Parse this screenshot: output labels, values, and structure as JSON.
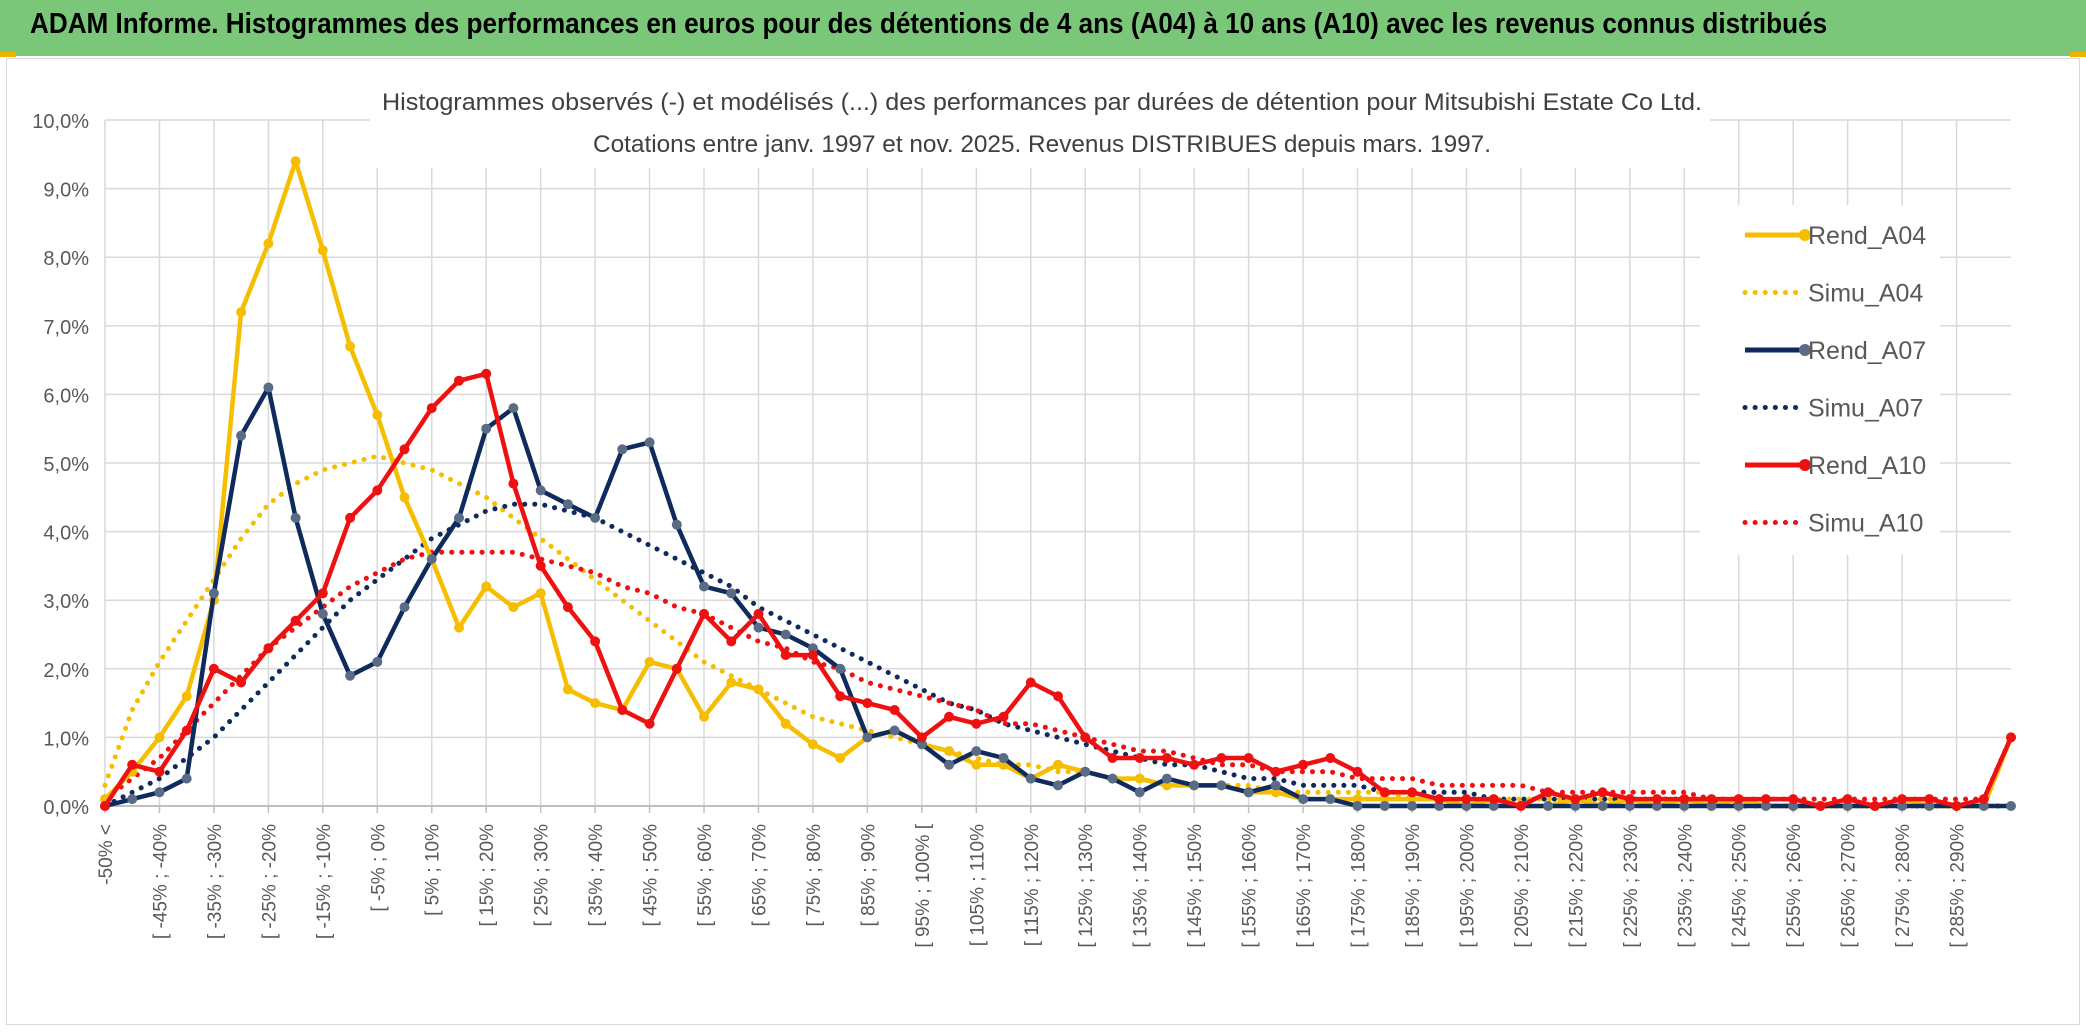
{
  "banner": {
    "title": "ADAM Informe. Histogrammes des performances en euros pour des détentions de 4 ans (A04) à 10 ans (A10) avec les revenus connus distribués"
  },
  "colors": {
    "banner_bg": "#7ac77a",
    "accent": "#f0b400",
    "a04": "#f5be00",
    "a07": "#0f2a5c",
    "a10": "#ee1111"
  },
  "chart_data": {
    "type": "line",
    "title": "Histogrammes observés (-) et modélisés (...) des performances par durées de détention pour Mitsubishi Estate Co Ltd.",
    "subtitle": "Cotations entre janv. 1997 et nov. 2025. Revenus DISTRIBUES depuis mars. 1997.",
    "xlabel": "",
    "ylabel": "",
    "ylim": [
      0,
      10
    ],
    "yticks": [
      "0,0%",
      "1,0%",
      "2,0%",
      "3,0%",
      "4,0%",
      "5,0%",
      "6,0%",
      "7,0%",
      "8,0%",
      "9,0%",
      "10,0%"
    ],
    "grid": true,
    "legend_position": "right",
    "categories": [
      "-50% <",
      "[ -45% ; -40%",
      "[ -35% ; -30%",
      "[ -25% ; -20%",
      "[ -15% ; -10%",
      "[ -5% ; 0%",
      "[ 5% ; 10%",
      "[ 15% ; 20%",
      "[ 25% ; 30%",
      "[ 35% ; 40%",
      "[ 45% ; 50%",
      "[ 55% ; 60%",
      "[ 65% ; 70%",
      "[ 75% ; 80%",
      "[ 85% ; 90%",
      "[ 95% ; 100% [",
      "[ 105% ; 110%",
      "[ 115% ; 120%",
      "[ 125% ; 130%",
      "[ 135% ; 140%",
      "[ 145% ; 150%",
      "[ 155% ; 160%",
      "[ 165% ; 170%",
      "[ 175% ; 180%",
      "[ 185% ; 190%",
      "[ 195% ; 200%",
      "[ 205% ; 210%",
      "[ 215% ; 220%",
      "[ 225% ; 230%",
      "[ 235% ; 240%",
      "[ 245% ; 250%",
      "[ 255% ; 260%",
      "[ 265% ; 270%",
      "[ 275% ; 280%",
      "[ 285% ; 290%"
    ],
    "x": [
      -50,
      -45,
      -40,
      -35,
      -30,
      -25,
      -20,
      -15,
      -10,
      -5,
      0,
      5,
      10,
      15,
      20,
      25,
      30,
      35,
      40,
      45,
      50,
      55,
      60,
      65,
      70,
      75,
      80,
      85,
      90,
      95,
      100,
      105,
      110,
      115,
      120,
      125,
      130,
      135,
      140,
      145,
      150,
      155,
      160,
      165,
      170,
      175,
      180,
      185,
      190,
      195,
      200,
      205,
      210,
      215,
      220,
      225,
      230,
      235,
      240,
      245,
      250,
      255,
      260,
      265,
      270,
      275,
      280,
      285,
      290,
      295,
      300
    ],
    "series": [
      {
        "name": "Rend_A04",
        "style": "solid",
        "values": [
          0.1,
          0.5,
          1.0,
          1.6,
          3.0,
          7.2,
          8.2,
          9.4,
          8.1,
          6.7,
          5.7,
          4.5,
          3.6,
          2.6,
          3.2,
          2.9,
          3.1,
          1.7,
          1.5,
          1.4,
          2.1,
          2.0,
          1.3,
          1.8,
          1.7,
          1.2,
          0.9,
          0.7,
          1.0,
          1.1,
          0.9,
          0.8,
          0.6,
          0.6,
          0.4,
          0.6,
          0.5,
          0.4,
          0.4,
          0.3,
          0.3,
          0.3,
          0.2,
          0.2,
          0.1,
          0.1,
          0.1,
          0.1,
          0.1,
          0.1,
          0.0,
          0.1,
          0.0,
          0.0,
          0.1,
          0.0,
          0.1,
          0.0,
          0.1,
          0.0,
          0.1,
          0.0,
          0.0,
          0.0,
          0.0,
          0.0,
          0.1,
          0.0,
          0.0,
          0.0,
          1.0
        ]
      },
      {
        "name": "Simu_A04",
        "style": "dotted",
        "values": [
          0.3,
          1.4,
          2.1,
          2.7,
          3.3,
          3.9,
          4.4,
          4.7,
          4.9,
          5.0,
          5.1,
          5.0,
          4.9,
          4.7,
          4.5,
          4.2,
          3.9,
          3.6,
          3.3,
          3.0,
          2.7,
          2.4,
          2.1,
          1.9,
          1.7,
          1.5,
          1.3,
          1.2,
          1.1,
          1.0,
          0.9,
          0.8,
          0.7,
          0.6,
          0.6,
          0.5,
          0.5,
          0.4,
          0.4,
          0.3,
          0.3,
          0.3,
          0.3,
          0.2,
          0.2,
          0.2,
          0.2,
          0.2,
          0.1,
          0.1,
          0.1,
          0.1,
          0.1,
          0.1,
          0.1,
          0.1,
          0.1,
          0.1,
          0.1,
          0.1,
          0.1,
          0.0,
          0.0,
          0.0,
          0.0,
          0.0,
          0.0,
          0.0,
          0.0,
          0.0,
          1.0
        ]
      },
      {
        "name": "Rend_A07",
        "style": "solid",
        "values": [
          0.0,
          0.1,
          0.2,
          0.4,
          3.1,
          5.4,
          6.1,
          4.2,
          2.8,
          1.9,
          2.1,
          2.9,
          3.6,
          4.2,
          5.5,
          5.8,
          4.6,
          4.4,
          4.2,
          5.2,
          5.3,
          4.1,
          3.2,
          3.1,
          2.6,
          2.5,
          2.3,
          2.0,
          1.0,
          1.1,
          0.9,
          0.6,
          0.8,
          0.7,
          0.4,
          0.3,
          0.5,
          0.4,
          0.2,
          0.4,
          0.3,
          0.3,
          0.2,
          0.3,
          0.1,
          0.1,
          0.0,
          0.0,
          0.0,
          0.0,
          0.0,
          0.0,
          0.0,
          0.0,
          0.0,
          0.0,
          0.0,
          0.0,
          0.0,
          0.0,
          0.0,
          0.0,
          0.0,
          0.0,
          0.0,
          0.0,
          0.0,
          0.0,
          0.0,
          0.0,
          0.0
        ]
      },
      {
        "name": "Simu_A07",
        "style": "dotted",
        "values": [
          0.0,
          0.2,
          0.4,
          0.7,
          1.0,
          1.4,
          1.8,
          2.2,
          2.6,
          3.0,
          3.3,
          3.6,
          3.9,
          4.1,
          4.3,
          4.4,
          4.4,
          4.3,
          4.2,
          4.0,
          3.8,
          3.6,
          3.4,
          3.2,
          2.9,
          2.7,
          2.5,
          2.3,
          2.1,
          1.9,
          1.7,
          1.5,
          1.4,
          1.2,
          1.1,
          1.0,
          0.9,
          0.8,
          0.7,
          0.6,
          0.6,
          0.5,
          0.4,
          0.4,
          0.3,
          0.3,
          0.3,
          0.2,
          0.2,
          0.2,
          0.2,
          0.1,
          0.1,
          0.1,
          0.1,
          0.1,
          0.1,
          0.1,
          0.1,
          0.1,
          0.0,
          0.0,
          0.0,
          0.0,
          0.0,
          0.0,
          0.0,
          0.0,
          0.0,
          0.0,
          0.0
        ]
      },
      {
        "name": "Rend_A10",
        "style": "solid",
        "values": [
          0.0,
          0.6,
          0.5,
          1.1,
          2.0,
          1.8,
          2.3,
          2.7,
          3.1,
          4.2,
          4.6,
          5.2,
          5.8,
          6.2,
          6.3,
          4.7,
          3.5,
          2.9,
          2.4,
          1.4,
          1.2,
          2.0,
          2.8,
          2.4,
          2.8,
          2.2,
          2.2,
          1.6,
          1.5,
          1.4,
          1.0,
          1.3,
          1.2,
          1.3,
          1.8,
          1.6,
          1.0,
          0.7,
          0.7,
          0.7,
          0.6,
          0.7,
          0.7,
          0.5,
          0.6,
          0.7,
          0.5,
          0.2,
          0.2,
          0.1,
          0.1,
          0.1,
          0.0,
          0.2,
          0.1,
          0.2,
          0.1,
          0.1,
          0.1,
          0.1,
          0.1,
          0.1,
          0.1,
          0.0,
          0.1,
          0.0,
          0.1,
          0.1,
          0.0,
          0.1,
          1.0
        ]
      },
      {
        "name": "Simu_A10",
        "style": "dotted",
        "values": [
          0.1,
          0.4,
          0.7,
          1.1,
          1.5,
          1.9,
          2.3,
          2.6,
          2.9,
          3.2,
          3.4,
          3.6,
          3.7,
          3.7,
          3.7,
          3.7,
          3.6,
          3.5,
          3.4,
          3.2,
          3.1,
          2.9,
          2.8,
          2.6,
          2.4,
          2.3,
          2.1,
          2.0,
          1.8,
          1.7,
          1.6,
          1.5,
          1.4,
          1.2,
          1.2,
          1.1,
          1.0,
          0.9,
          0.8,
          0.8,
          0.7,
          0.6,
          0.6,
          0.5,
          0.5,
          0.5,
          0.4,
          0.4,
          0.4,
          0.3,
          0.3,
          0.3,
          0.3,
          0.2,
          0.2,
          0.2,
          0.2,
          0.2,
          0.2,
          0.1,
          0.1,
          0.1,
          0.1,
          0.1,
          0.1,
          0.1,
          0.1,
          0.1,
          0.1,
          0.1,
          1.0
        ]
      }
    ]
  }
}
